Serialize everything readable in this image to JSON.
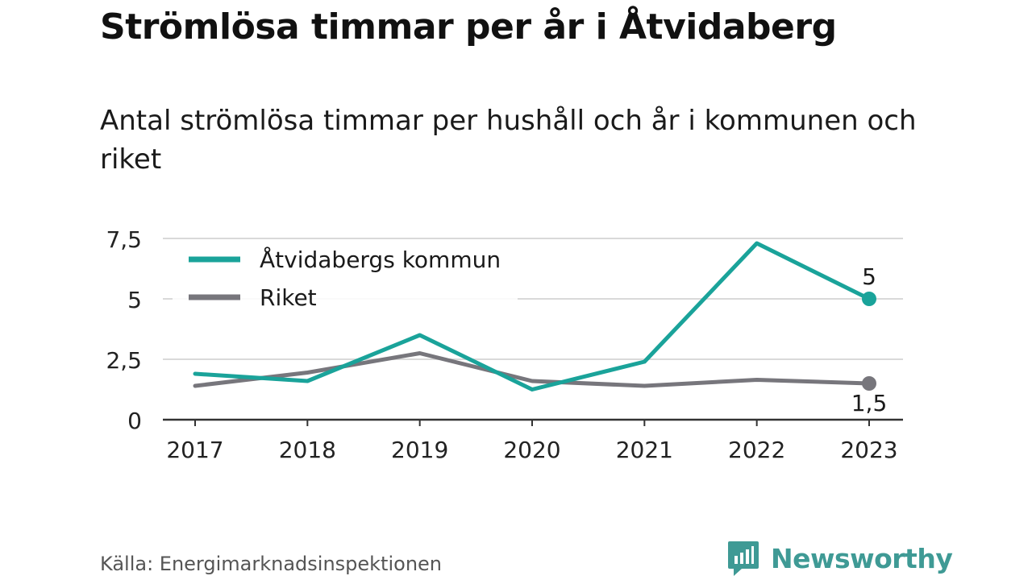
{
  "title": "Strömlösa timmar per år i Åtvidaberg",
  "subtitle": "Antal strömlösa timmar per hushåll och år i kommunen och riket",
  "source": "Källa: Energimarknadsinspektionen",
  "brand": {
    "name": "Newsworthy",
    "icon": "newsworthy-logo-icon",
    "color": "#3f9a95"
  },
  "chart_data": {
    "type": "line",
    "x": [
      "2017",
      "2018",
      "2019",
      "2020",
      "2021",
      "2022",
      "2023"
    ],
    "y_ticks": [
      "0",
      "2,5",
      "5",
      "7,5"
    ],
    "y_tick_values": [
      0,
      2.5,
      5,
      7.5
    ],
    "ylim": [
      0,
      7.5
    ],
    "grid": true,
    "legend": "top-left",
    "series": [
      {
        "name": "Åtvidabergs kommun",
        "color": "#1aa39a",
        "values": [
          1.9,
          1.6,
          3.5,
          1.25,
          2.4,
          7.3,
          5
        ],
        "end_label": "5"
      },
      {
        "name": "Riket",
        "color": "#77767c",
        "values": [
          1.4,
          1.95,
          2.75,
          1.6,
          1.4,
          1.65,
          1.5
        ],
        "end_label": "1,5"
      }
    ]
  }
}
